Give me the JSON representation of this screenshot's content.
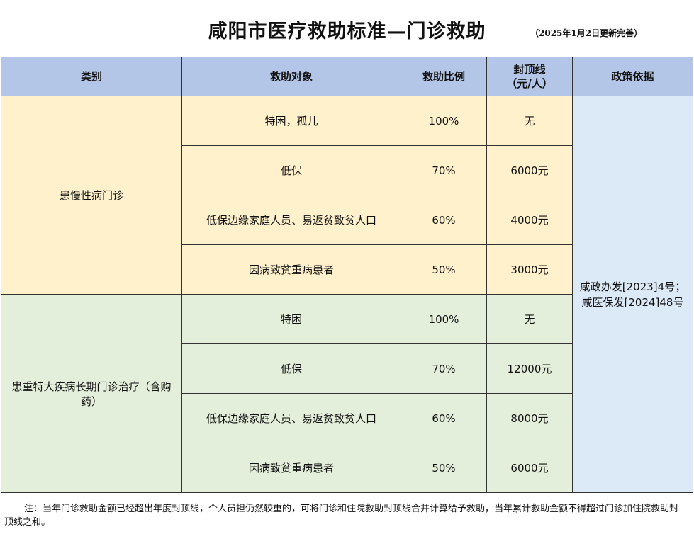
{
  "header": {
    "title": "咸阳市医疗救助标准—门诊救助",
    "update": "（2025年1月2日更新完善）"
  },
  "columns": {
    "category": "类别",
    "target": "救助对象",
    "ratio": "救助比例",
    "cap_line1": "封顶线",
    "cap_line2": "（元/人）",
    "policy": "政策依据"
  },
  "groups": [
    {
      "category": "患慢性病门诊",
      "rows": [
        {
          "target": "特困，孤儿",
          "ratio": "100%",
          "cap": "无"
        },
        {
          "target": "低保",
          "ratio": "70%",
          "cap": "6000元"
        },
        {
          "target": "低保边缘家庭人员、易返贫致贫人口",
          "ratio": "60%",
          "cap": "4000元"
        },
        {
          "target": "因病致贫重病患者",
          "ratio": "50%",
          "cap": "3000元"
        }
      ]
    },
    {
      "category": "患重特大疾病长期门诊治疗（含购药）",
      "rows": [
        {
          "target": "特困",
          "ratio": "100%",
          "cap": "无"
        },
        {
          "target": "低保",
          "ratio": "70%",
          "cap": "12000元"
        },
        {
          "target": "低保边缘家庭人员、易返贫致贫人口",
          "ratio": "60%",
          "cap": "8000元"
        },
        {
          "target": "因病致贫重病患者",
          "ratio": "50%",
          "cap": "6000元"
        }
      ]
    }
  ],
  "policy": {
    "line1": "咸政办发[2023]4号；",
    "line2": "咸医保发[2024]48号"
  },
  "note": "注：当年门诊救助金额已经超出年度封顶线，个人员担仍然较重的，可将门诊和住院救助封顶线合并计算给予救助，当年累计救助金额不得超过门诊加住院救助封顶线之和。",
  "colors": {
    "header_bg": "#b4c6e7",
    "chronic_bg": "#fff1cc",
    "major_bg": "#e3efda",
    "policy_bg": "#dce9f7"
  }
}
